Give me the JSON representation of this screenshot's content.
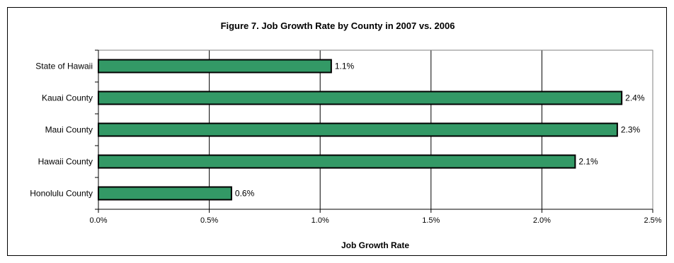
{
  "chart_data": {
    "type": "bar",
    "orientation": "horizontal",
    "title": "Figure 7. Job Growth Rate by County in 2007 vs. 2006",
    "xlabel": "Job Growth Rate",
    "ylabel": "",
    "categories": [
      "State of Hawaii",
      "Kauai County",
      "Maui County",
      "Hawaii County",
      "Honolulu County"
    ],
    "values": [
      1.05,
      2.36,
      2.34,
      2.15,
      0.6
    ],
    "value_labels": [
      "1.1%",
      "2.4%",
      "2.3%",
      "2.1%",
      "0.6%"
    ],
    "xlim": [
      0,
      2.5
    ],
    "xticks": [
      0,
      0.5,
      1.0,
      1.5,
      2.0,
      2.5
    ],
    "xtick_labels": [
      "0.0%",
      "0.5%",
      "1.0%",
      "1.5%",
      "2.0%",
      "2.5%"
    ],
    "grid": "vertical",
    "bar_color": "#339966",
    "plot_background": "#ffffff"
  }
}
